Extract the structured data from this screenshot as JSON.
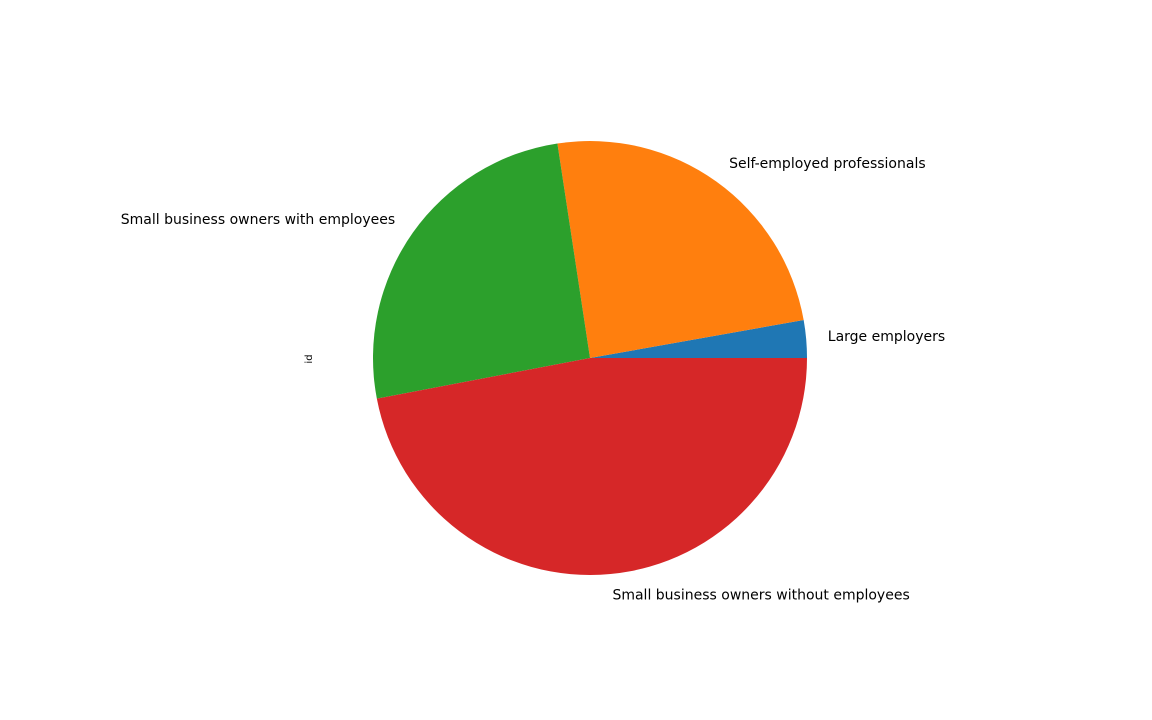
{
  "chart_data": {
    "type": "pie",
    "ylabel": "id",
    "start_angle_deg": 0,
    "direction": "counterclockwise",
    "slices": [
      {
        "label": "Large employers",
        "value": 2.8,
        "color": "#1f77b4"
      },
      {
        "label": "Self-employed professionals",
        "value": 24.6,
        "color": "#ff7f0e"
      },
      {
        "label": "Small business owners with employees",
        "value": 25.6,
        "color": "#2ca02c"
      },
      {
        "label": "Small business owners without employees",
        "value": 47.0,
        "color": "#d62728"
      }
    ]
  }
}
